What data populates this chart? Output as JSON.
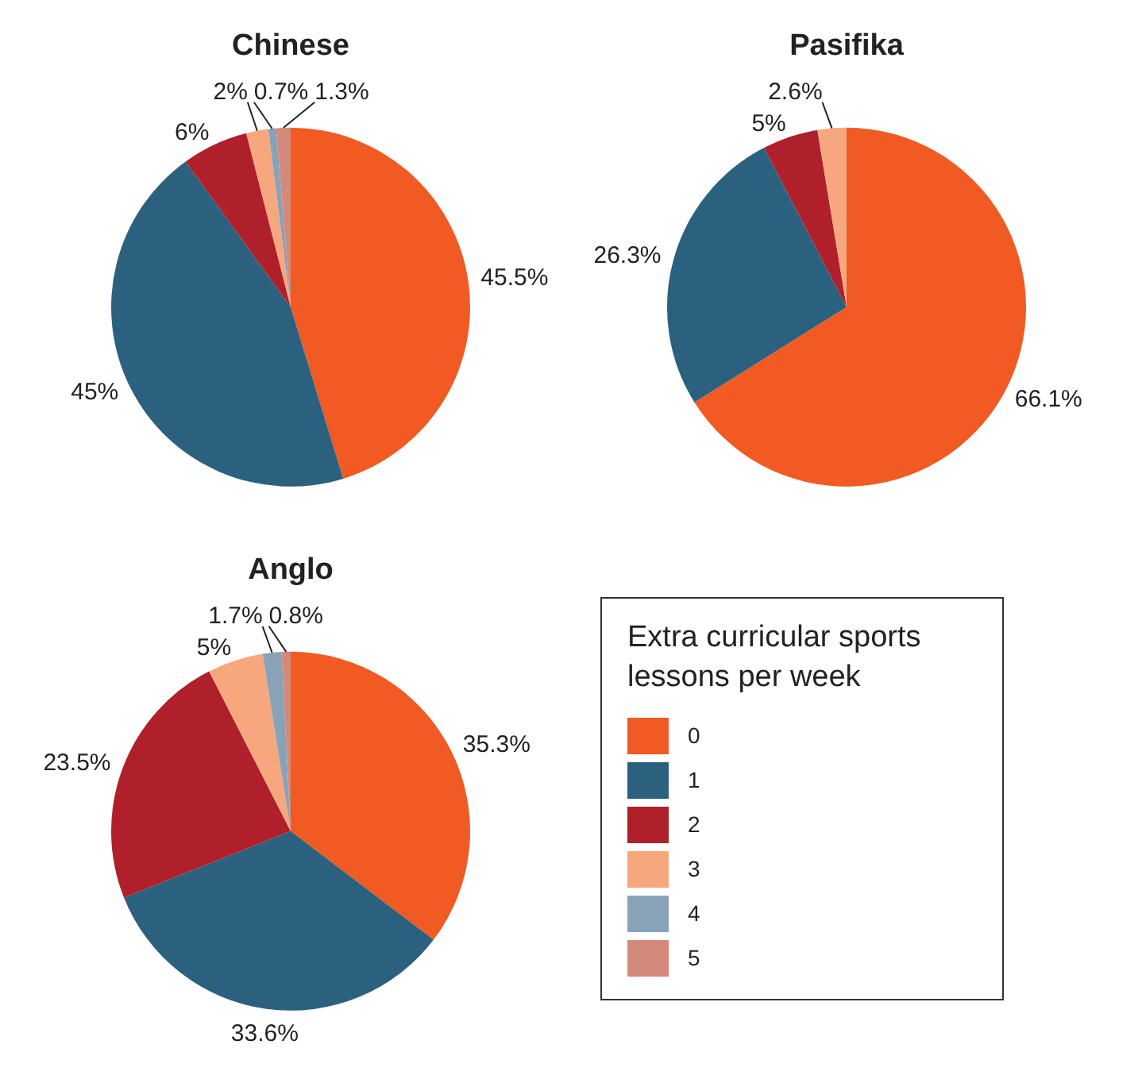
{
  "chart_data": [
    {
      "type": "pie",
      "title": "Chinese",
      "categories": [
        "0",
        "1",
        "2",
        "3",
        "4",
        "5"
      ],
      "values": [
        45.5,
        45,
        6,
        2,
        0.7,
        1.3
      ],
      "colors": [
        "#f15a22",
        "#2b617f",
        "#b0202a",
        "#f7a77e",
        "#88a3b8",
        "#d48a7a"
      ],
      "value_labels": [
        "45.5%",
        "45%",
        "6%",
        "2%",
        "0.7%",
        "1.3%"
      ],
      "legend": "bottom right",
      "legend_title": "Extra curricular sports lessons per week"
    },
    {
      "type": "pie",
      "title": "Pasifika",
      "categories": [
        null,
        null,
        null,
        null,
        null,
        null
      ],
      "values": [
        66.1,
        26.3,
        5,
        2.6,
        null,
        null
      ],
      "colors": [
        "#f15a22",
        "#2b617f",
        "#b0202a",
        "#f7a77e",
        "#88a3b8",
        "#d48a7a"
      ],
      "value_labels": [
        "66.1%",
        "26.3%",
        "5%",
        "2.6%",
        null,
        null
      ]
    },
    {
      "type": "pie",
      "title": "Anglo",
      "categories": [
        null,
        null,
        null,
        null,
        null,
        null
      ],
      "values": [
        35.3,
        33.6,
        23.5,
        5,
        1.7,
        0.8
      ],
      "colors": [
        "#f15a22",
        "#2b617f",
        "#b0202a",
        "#f7a77e",
        "#88a3b8",
        "#d48a7a"
      ],
      "value_labels": [
        "35.3%",
        "33.6%",
        "23.5%",
        "5%",
        "1.7%",
        "0.8%"
      ]
    }
  ]
}
